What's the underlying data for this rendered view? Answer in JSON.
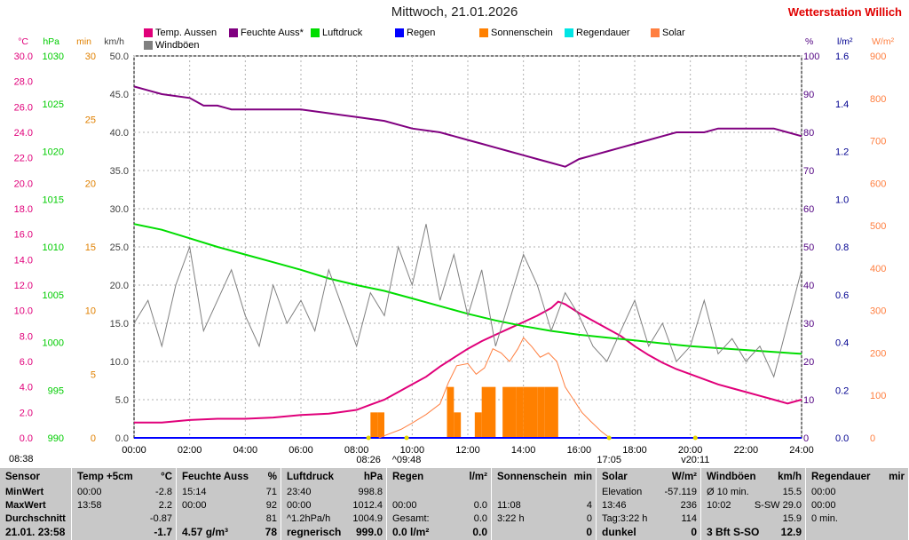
{
  "title": "Mittwoch, 21.01.2026",
  "station": "Wetterstation Willich",
  "legend": [
    {
      "label": "Temp. Aussen",
      "color": "#e0007a"
    },
    {
      "label": "Feuchte Auss*",
      "color": "#800080"
    },
    {
      "label": "Luftdruck",
      "color": "#00dd00"
    },
    {
      "label": "Regen",
      "color": "#0000ff"
    },
    {
      "label": "Sonnenschein",
      "color": "#ff8000"
    },
    {
      "label": "Regendauer",
      "color": "#00e5e5"
    },
    {
      "label": "Solar",
      "color": "#ff7f40"
    },
    {
      "label": "Windböen",
      "color": "#808080"
    }
  ],
  "axes": {
    "temp": {
      "unit": "°C",
      "color": "#e0007a",
      "ticks": [
        "30.0",
        "28.0",
        "26.0",
        "24.0",
        "22.0",
        "20.0",
        "18.0",
        "16.0",
        "14.0",
        "12.0",
        "10.0",
        "8.0",
        "6.0",
        "4.0",
        "2.0",
        "0.0"
      ]
    },
    "hpa": {
      "unit": "hPa",
      "color": "#00cc00",
      "ticks": [
        "1030",
        "1025",
        "1020",
        "1015",
        "1010",
        "1005",
        "1000",
        "995",
        "990"
      ]
    },
    "min": {
      "unit": "min",
      "color": "#e08000",
      "ticks": [
        "30",
        "25",
        "20",
        "15",
        "10",
        "5",
        "0"
      ]
    },
    "kmh": {
      "unit": "km/h",
      "color": "#404040",
      "ticks": [
        "50.0",
        "45.0",
        "40.0",
        "35.0",
        "30.0",
        "25.0",
        "20.0",
        "15.0",
        "10.0",
        "5.0",
        "0.0"
      ]
    },
    "pct": {
      "unit": "%",
      "color": "#500080",
      "ticks": [
        "100",
        "90",
        "80",
        "70",
        "60",
        "50",
        "40",
        "30",
        "20",
        "10",
        "0"
      ]
    },
    "lm2": {
      "unit": "l/m²",
      "color": "#000090",
      "ticks": [
        "1.6",
        "1.4",
        "1.2",
        "1.0",
        "0.8",
        "0.6",
        "0.4",
        "0.2",
        "0.0"
      ]
    },
    "wm2": {
      "unit": "W/m²",
      "color": "#ff7f40",
      "ticks": [
        "900",
        "800",
        "700",
        "600",
        "500",
        "400",
        "300",
        "200",
        "100",
        "0"
      ]
    },
    "x_ticks": [
      "00:00",
      "02:00",
      "04:00",
      "06:00",
      "08:00",
      "10:00",
      "12:00",
      "14:00",
      "16:00",
      "18:00",
      "20:00",
      "22:00",
      "24:00"
    ]
  },
  "markers": {
    "start": "08:38",
    "sunrise": "08:26",
    "noon": "^09:48",
    "sunset": "17:05",
    "end": "v20:11"
  },
  "chart_data": {
    "type": "line",
    "x_unit": "hours",
    "xlim": [
      0,
      24
    ],
    "series": [
      {
        "name": "Temp. Aussen",
        "axis": "temp",
        "color": "#e0007a",
        "x": [
          0,
          1,
          2,
          3,
          4,
          5,
          6,
          7,
          8,
          8.5,
          9,
          9.5,
          10,
          10.5,
          11,
          11.5,
          12,
          12.5,
          13,
          13.5,
          14,
          14.5,
          15,
          15.25,
          15.5,
          16,
          16.5,
          17,
          17.5,
          18,
          18.5,
          19,
          19.5,
          20,
          20.5,
          21,
          21.5,
          22,
          22.5,
          23,
          23.5,
          24
        ],
        "y": [
          1.2,
          1.2,
          1.4,
          1.5,
          1.5,
          1.6,
          1.8,
          1.9,
          2.2,
          2.6,
          3.0,
          3.6,
          4.2,
          4.8,
          5.6,
          6.3,
          7.0,
          7.6,
          8.1,
          8.6,
          9.1,
          9.6,
          10.2,
          10.7,
          10.5,
          9.8,
          9.2,
          8.6,
          8.0,
          7.2,
          6.5,
          5.9,
          5.4,
          5.0,
          4.6,
          4.2,
          3.9,
          3.6,
          3.3,
          3.0,
          2.7,
          3.0
        ]
      },
      {
        "name": "Feuchte Auss*",
        "axis": "pct",
        "color": "#800080",
        "x": [
          0,
          0.5,
          1,
          2,
          2.5,
          3,
          3.5,
          4,
          5,
          6,
          7,
          8,
          9,
          10,
          11,
          12,
          12.5,
          13,
          13.5,
          14,
          14.5,
          15,
          15.5,
          16,
          16.5,
          17,
          17.5,
          18,
          18.5,
          19,
          19.5,
          20,
          20.5,
          21,
          22,
          23,
          23.5,
          24
        ],
        "y": [
          92,
          91,
          90,
          89,
          87,
          87,
          86,
          86,
          86,
          86,
          85,
          84,
          83,
          81,
          80,
          78,
          77,
          76,
          75,
          74,
          73,
          72,
          71,
          73,
          74,
          75,
          76,
          77,
          78,
          79,
          80,
          80,
          80,
          81,
          81,
          81,
          80,
          79
        ]
      },
      {
        "name": "Luftdruck",
        "axis": "hpa",
        "color": "#00dd00",
        "x": [
          0,
          1,
          2,
          3,
          4,
          5,
          6,
          7,
          8,
          9,
          10,
          11,
          12,
          13,
          14,
          15,
          16,
          17,
          18,
          19,
          20,
          21,
          22,
          23,
          24
        ],
        "y": [
          1012.4,
          1011.8,
          1010.9,
          1010.0,
          1009.2,
          1008.4,
          1007.6,
          1006.7,
          1006.0,
          1005.4,
          1004.6,
          1003.8,
          1003.0,
          1002.3,
          1001.7,
          1001.2,
          1000.8,
          1000.5,
          1000.2,
          999.9,
          999.6,
          999.4,
          999.2,
          999.0,
          998.8
        ]
      },
      {
        "name": "Regen",
        "axis": "lm2",
        "color": "#0000ff",
        "x": [
          0,
          24
        ],
        "y": [
          0,
          0
        ]
      },
      {
        "name": "Solar",
        "axis": "wm2",
        "color": "#ff7f40",
        "x": [
          8.8,
          9.2,
          9.6,
          10,
          10.5,
          11,
          11.3,
          11.6,
          12,
          12.3,
          12.6,
          12.9,
          13.2,
          13.5,
          13.8,
          14,
          14.3,
          14.6,
          14.9,
          15.2,
          15.5,
          15.8,
          16.1,
          16.4,
          16.8,
          17.1
        ],
        "y": [
          0,
          10,
          20,
          35,
          55,
          80,
          130,
          170,
          175,
          150,
          165,
          210,
          200,
          180,
          210,
          236,
          215,
          190,
          200,
          180,
          120,
          90,
          60,
          40,
          15,
          0
        ]
      },
      {
        "name": "Windböen",
        "axis": "kmh",
        "color": "#808080",
        "x": [
          0,
          0.5,
          1,
          1.5,
          2,
          2.5,
          3,
          3.5,
          4,
          4.5,
          5,
          5.5,
          6,
          6.5,
          7,
          7.5,
          8,
          8.5,
          9,
          9.5,
          10,
          10.5,
          11,
          11.5,
          12,
          12.5,
          13,
          13.5,
          14,
          14.5,
          15,
          15.5,
          16,
          16.5,
          17,
          17.5,
          18,
          18.5,
          19,
          19.5,
          20,
          20.5,
          21,
          21.5,
          22,
          22.5,
          23,
          23.5,
          24
        ],
        "y": [
          15,
          18,
          12,
          20,
          25,
          14,
          18,
          22,
          16,
          12,
          20,
          15,
          18,
          14,
          22,
          17,
          12,
          19,
          16,
          25,
          20,
          28,
          18,
          24,
          16,
          22,
          12,
          18,
          24,
          20,
          14,
          19,
          16,
          12,
          10,
          14,
          18,
          12,
          15,
          10,
          12,
          18,
          11,
          13,
          10,
          12,
          8,
          15,
          22
        ]
      }
    ],
    "bars": {
      "name": "Sonnenschein",
      "axis": "min",
      "color": "#ff8000",
      "x": [
        8.5,
        8.75,
        11.25,
        11.5,
        12.25,
        12.5,
        12.75,
        13.25,
        13.5,
        13.75,
        14,
        14.25,
        14.5,
        14.75,
        15
      ],
      "values": [
        2,
        2,
        4,
        2,
        2,
        4,
        4,
        4,
        4,
        4,
        4,
        4,
        4,
        4,
        4
      ]
    }
  },
  "table": {
    "labels": {
      "header": "Sensor",
      "min": "MinWert",
      "max": "MaxWert",
      "avg": "Durchschnitt",
      "now": "21.01. 23:58"
    },
    "cols": [
      {
        "header": [
          "Temp +5cm",
          "°C"
        ],
        "min": [
          "00:00",
          "-2.8"
        ],
        "max": [
          "13:58",
          "2.2"
        ],
        "avg": [
          "",
          "-0.87"
        ],
        "now": [
          "",
          "-1.7"
        ]
      },
      {
        "header": [
          "Feuchte Auss",
          "%"
        ],
        "min": [
          "15:14",
          "71"
        ],
        "max": [
          "00:00",
          "92"
        ],
        "avg": [
          "",
          "81"
        ],
        "now": [
          "4.57 g/m³",
          "78"
        ]
      },
      {
        "header": [
          "Luftdruck",
          "hPa"
        ],
        "min": [
          "23:40",
          "998.8"
        ],
        "max": [
          "00:00",
          "1012.4"
        ],
        "avg": [
          "^1.2hPa/h",
          "1004.9"
        ],
        "now": [
          "regnerisch",
          "999.0"
        ]
      },
      {
        "header": [
          "Regen",
          "l/m²"
        ],
        "min": [
          "",
          ""
        ],
        "max": [
          "00:00",
          "0.0"
        ],
        "avg": [
          "Gesamt:",
          "0.0"
        ],
        "now": [
          "0.0 l/m²",
          "0.0"
        ]
      },
      {
        "header": [
          "Sonnenschein",
          "min"
        ],
        "min": [
          "",
          ""
        ],
        "max": [
          "11:08",
          "4"
        ],
        "avg": [
          "3:22 h",
          "0"
        ],
        "now": [
          "",
          "0"
        ]
      },
      {
        "header": [
          "Solar",
          "W/m²"
        ],
        "min": [
          "Elevation",
          "-57.119"
        ],
        "max": [
          "13:46",
          "236"
        ],
        "avg": [
          "Tag:3:22 h",
          "114"
        ],
        "now": [
          "dunkel",
          "0"
        ]
      },
      {
        "header": [
          "Windböen",
          "km/h"
        ],
        "min": [
          "Ø 10 min.",
          "15.5"
        ],
        "max": [
          "10:02",
          "S-SW 29.0"
        ],
        "avg": [
          "",
          "15.9"
        ],
        "now": [
          "3 Bft S-SO",
          "12.9"
        ]
      },
      {
        "header": [
          "Regendauer",
          "mir"
        ],
        "min": [
          "00:00",
          ""
        ],
        "max": [
          "00:00",
          ""
        ],
        "avg": [
          "0 min.",
          ""
        ],
        "now": [
          "",
          ""
        ]
      }
    ]
  }
}
